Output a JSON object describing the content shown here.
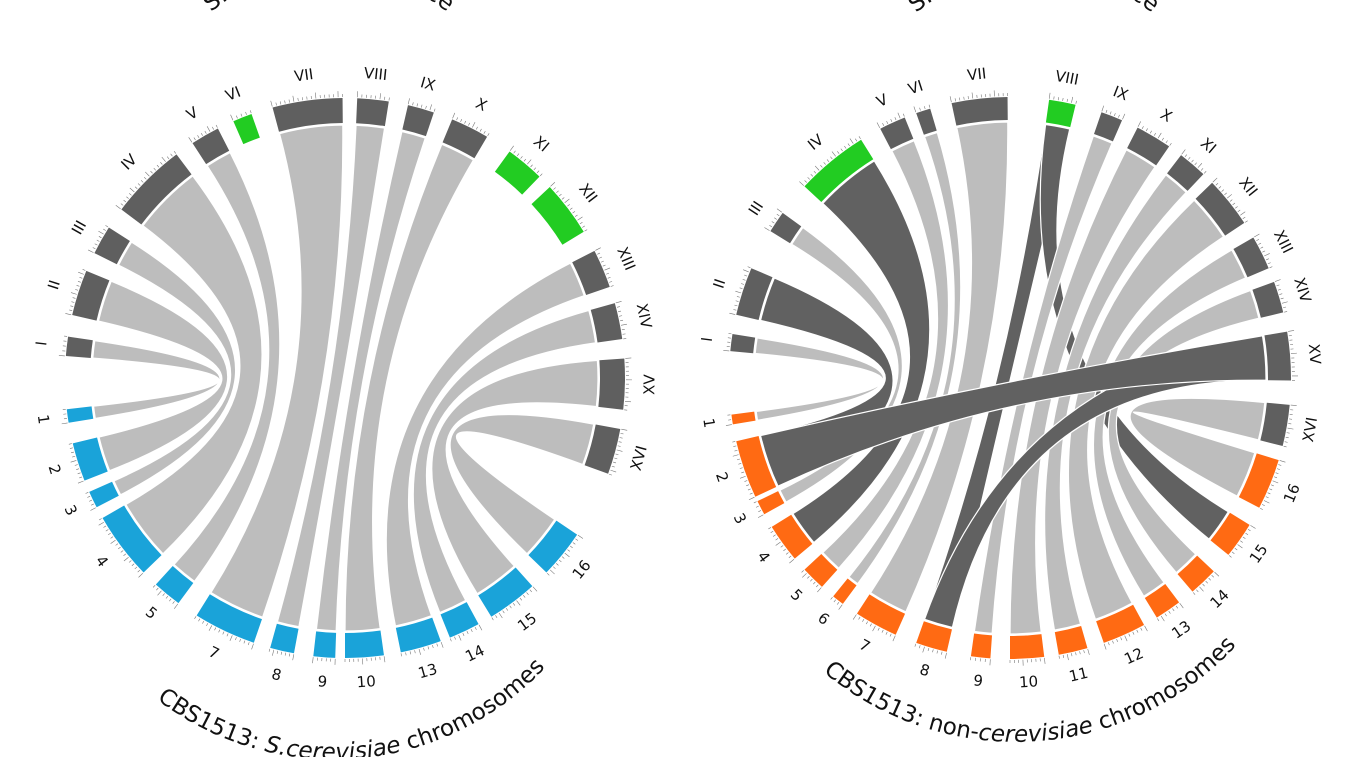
{
  "colors": {
    "reference_chr": "#5f5f5f",
    "highlight_chr": "#22cc22",
    "scer_chr": "#1aa3d9",
    "noncer_chr": "#ff6a13",
    "ribbon_light": "#bdbdbd",
    "ribbon_dark": "#616161"
  },
  "left": {
    "title_top": "S.cerevisiae reference",
    "title_bottom_prefix": "CBS1513: ",
    "title_bottom_italic": "S.cerevisiae",
    "title_bottom_suffix": " chromosomes",
    "chromosomes": [
      {
        "label": "I",
        "group": "reference"
      },
      {
        "label": "II",
        "group": "reference"
      },
      {
        "label": "III",
        "group": "reference"
      },
      {
        "label": "IV",
        "group": "reference"
      },
      {
        "label": "V",
        "group": "reference"
      },
      {
        "label": "VI",
        "group": "highlight"
      },
      {
        "label": "VII",
        "group": "reference"
      },
      {
        "label": "VIII",
        "group": "reference"
      },
      {
        "label": "IX",
        "group": "reference"
      },
      {
        "label": "X",
        "group": "reference"
      },
      {
        "label": "XI",
        "group": "highlight"
      },
      {
        "label": "XII",
        "group": "highlight"
      },
      {
        "label": "XIII",
        "group": "reference"
      },
      {
        "label": "XIV",
        "group": "reference"
      },
      {
        "label": "XV",
        "group": "reference"
      },
      {
        "label": "XVI",
        "group": "reference"
      },
      {
        "label": "16",
        "group": "scer"
      },
      {
        "label": "15",
        "group": "scer"
      },
      {
        "label": "14",
        "group": "scer"
      },
      {
        "label": "13",
        "group": "scer"
      },
      {
        "label": "10",
        "group": "scer"
      },
      {
        "label": "9",
        "group": "scer"
      },
      {
        "label": "8",
        "group": "scer"
      },
      {
        "label": "7",
        "group": "scer"
      },
      {
        "label": "5",
        "group": "scer"
      },
      {
        "label": "4",
        "group": "scer"
      },
      {
        "label": "3",
        "group": "scer"
      },
      {
        "label": "2",
        "group": "scer"
      },
      {
        "label": "1",
        "group": "scer"
      }
    ],
    "links": [
      {
        "from": "I",
        "to": "1",
        "shade": "light"
      },
      {
        "from": "II",
        "to": "2",
        "shade": "light"
      },
      {
        "from": "III",
        "to": "3",
        "shade": "light"
      },
      {
        "from": "IV",
        "to": "4",
        "shade": "light"
      },
      {
        "from": "V",
        "to": "5",
        "shade": "light"
      },
      {
        "from": "VII",
        "to": "7",
        "shade": "light"
      },
      {
        "from": "VIII",
        "to": "8",
        "shade": "light"
      },
      {
        "from": "IX",
        "to": "9",
        "shade": "light"
      },
      {
        "from": "X",
        "to": "10",
        "shade": "light"
      },
      {
        "from": "XIII",
        "to": "13",
        "shade": "light"
      },
      {
        "from": "XIV",
        "to": "14",
        "shade": "light"
      },
      {
        "from": "XV",
        "to": "15",
        "shade": "light"
      },
      {
        "from": "XVI",
        "to": "16",
        "shade": "light"
      }
    ]
  },
  "right": {
    "title_top": "S.cerevisiae reference",
    "title_bottom_prefix": "CBS1513: non-",
    "title_bottom_italic": "cerevisiae",
    "title_bottom_suffix": " chromosomes",
    "chromosomes": [
      {
        "label": "I",
        "group": "reference"
      },
      {
        "label": "II",
        "group": "reference"
      },
      {
        "label": "III",
        "group": "reference"
      },
      {
        "label": "IV",
        "group": "highlight"
      },
      {
        "label": "V",
        "group": "reference"
      },
      {
        "label": "VI",
        "group": "reference"
      },
      {
        "label": "VII",
        "group": "reference"
      },
      {
        "label": "VIII",
        "group": "highlight"
      },
      {
        "label": "IX",
        "group": "reference"
      },
      {
        "label": "X",
        "group": "reference"
      },
      {
        "label": "XI",
        "group": "reference"
      },
      {
        "label": "XII",
        "group": "reference"
      },
      {
        "label": "XIII",
        "group": "reference"
      },
      {
        "label": "XIV",
        "group": "reference"
      },
      {
        "label": "XV",
        "group": "reference"
      },
      {
        "label": "XVI",
        "group": "reference"
      },
      {
        "label": "16",
        "group": "noncer"
      },
      {
        "label": "15",
        "group": "noncer"
      },
      {
        "label": "14",
        "group": "noncer"
      },
      {
        "label": "13",
        "group": "noncer"
      },
      {
        "label": "12",
        "group": "noncer"
      },
      {
        "label": "11",
        "group": "noncer"
      },
      {
        "label": "10",
        "group": "noncer"
      },
      {
        "label": "9",
        "group": "noncer"
      },
      {
        "label": "8",
        "group": "noncer"
      },
      {
        "label": "7",
        "group": "noncer"
      },
      {
        "label": "6",
        "group": "noncer"
      },
      {
        "label": "5",
        "group": "noncer"
      },
      {
        "label": "4",
        "group": "noncer"
      },
      {
        "label": "3",
        "group": "noncer"
      },
      {
        "label": "2",
        "group": "noncer"
      },
      {
        "label": "1",
        "group": "noncer"
      }
    ],
    "links": [
      {
        "from": "I",
        "to": "1",
        "shade": "light"
      },
      {
        "from": "II",
        "to": "2",
        "shade": "dark"
      },
      {
        "from": "III",
        "to": "3",
        "shade": "light"
      },
      {
        "from": "IV",
        "to": "4",
        "shade": "dark"
      },
      {
        "from": "V",
        "to": "5",
        "shade": "light"
      },
      {
        "from": "VI",
        "to": "6",
        "shade": "light"
      },
      {
        "from": "VII",
        "to": "7",
        "shade": "light"
      },
      {
        "from": "VIII",
        "to": "8",
        "shade": "dark"
      },
      {
        "from": "VIII",
        "to": "15",
        "shade": "dark"
      },
      {
        "from": "IX",
        "to": "9",
        "shade": "light"
      },
      {
        "from": "X",
        "to": "10",
        "shade": "light"
      },
      {
        "from": "XI",
        "to": "11",
        "shade": "light"
      },
      {
        "from": "XII",
        "to": "12",
        "shade": "light"
      },
      {
        "from": "XIII",
        "to": "13",
        "shade": "light"
      },
      {
        "from": "XIV",
        "to": "14",
        "shade": "light"
      },
      {
        "from": "XV",
        "to": "8",
        "shade": "dark"
      },
      {
        "from": "XVI",
        "to": "16",
        "shade": "light"
      },
      {
        "from": "XV",
        "to": "2",
        "shade": "dark"
      }
    ]
  }
}
